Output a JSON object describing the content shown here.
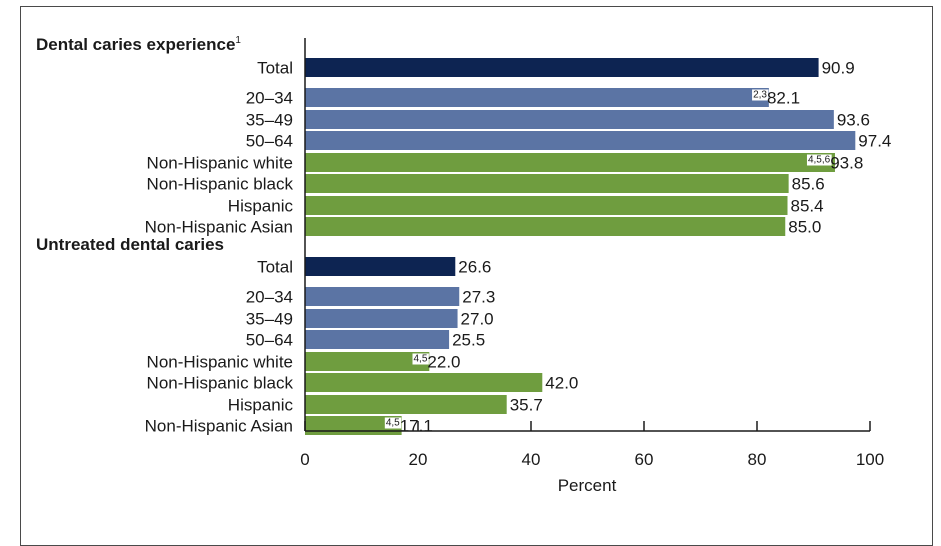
{
  "chart_data": {
    "type": "bar",
    "orientation": "horizontal",
    "xlabel": "Percent",
    "xlim": [
      0,
      100
    ],
    "xticks": [
      "0",
      "20",
      "40",
      "60",
      "80",
      "100"
    ],
    "grid": false,
    "colors": {
      "total": "#0d2452",
      "age": "#5b74a4",
      "race": "#6f9d3f"
    },
    "groups": [
      {
        "title": "Dental caries experience",
        "title_superscript": "1",
        "bars": [
          {
            "label": "Total",
            "value": 90.9,
            "value_label": "90.9",
            "note": "",
            "category": "total"
          },
          {
            "label": "20–34",
            "value": 82.1,
            "value_label": "82.1",
            "note": "2,3",
            "category": "age"
          },
          {
            "label": "35–49",
            "value": 93.6,
            "value_label": "93.6",
            "note": "",
            "category": "age"
          },
          {
            "label": "50–64",
            "value": 97.4,
            "value_label": "97.4",
            "note": "",
            "category": "age"
          },
          {
            "label": "Non-Hispanic white",
            "value": 93.8,
            "value_label": "93.8",
            "note": "4,5,6",
            "category": "race"
          },
          {
            "label": "Non-Hispanic black",
            "value": 85.6,
            "value_label": "85.6",
            "note": "",
            "category": "race"
          },
          {
            "label": "Hispanic",
            "value": 85.4,
            "value_label": "85.4",
            "note": "",
            "category": "race"
          },
          {
            "label": "Non-Hispanic Asian",
            "value": 85.0,
            "value_label": "85.0",
            "note": "",
            "category": "race"
          }
        ]
      },
      {
        "title": "Untreated dental caries",
        "title_superscript": "",
        "bars": [
          {
            "label": "Total",
            "value": 26.6,
            "value_label": "26.6",
            "note": "",
            "category": "total"
          },
          {
            "label": "20–34",
            "value": 27.3,
            "value_label": "27.3",
            "note": "",
            "category": "age"
          },
          {
            "label": "35–49",
            "value": 27.0,
            "value_label": "27.0",
            "note": "",
            "category": "age"
          },
          {
            "label": "50–64",
            "value": 25.5,
            "value_label": "25.5",
            "note": "",
            "category": "age"
          },
          {
            "label": "Non-Hispanic white",
            "value": 22.0,
            "value_label": "22.0",
            "note": "4,5",
            "category": "race"
          },
          {
            "label": "Non-Hispanic black",
            "value": 42.0,
            "value_label": "42.0",
            "note": "",
            "category": "race"
          },
          {
            "label": "Hispanic",
            "value": 35.7,
            "value_label": "35.7",
            "note": "",
            "category": "race"
          },
          {
            "label": "Non-Hispanic Asian",
            "value": 17.1,
            "value_label": "17.1",
            "note": "4,5",
            "category": "race"
          }
        ]
      }
    ]
  }
}
